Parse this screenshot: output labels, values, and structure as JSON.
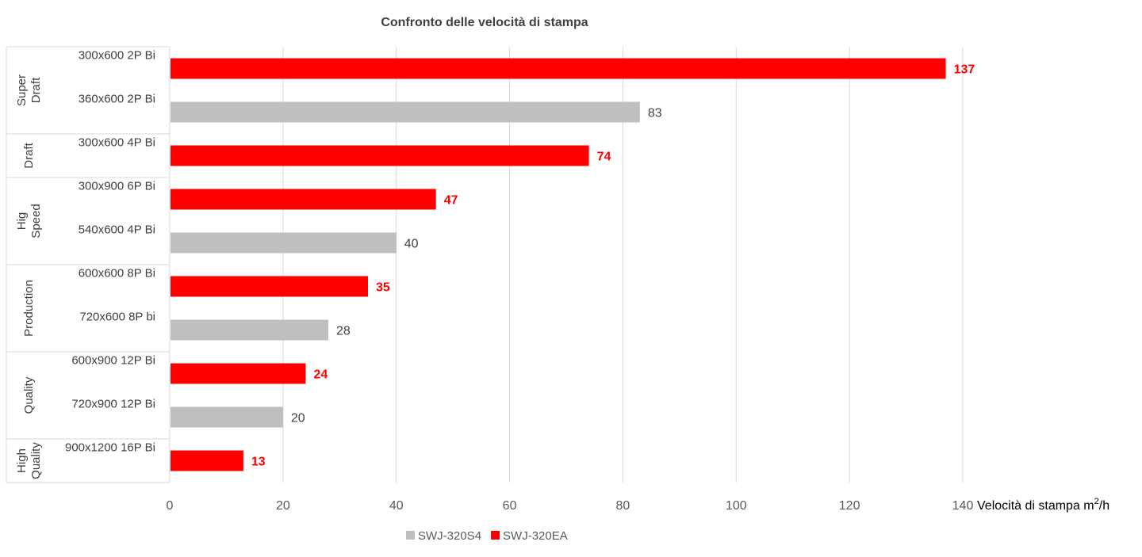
{
  "chart_data": {
    "type": "bar",
    "orientation": "horizontal",
    "title": "Confronto delle velocità di stampa",
    "xlabel": "Velocità di stampa m",
    "xlabel_sup": "2",
    "xlabel_suffix": "/h",
    "xlim": [
      0,
      140
    ],
    "xticks": [
      0,
      20,
      40,
      60,
      80,
      100,
      120,
      140
    ],
    "grid": true,
    "legend_position": "bottom",
    "series": [
      {
        "name": "SWJ-320S4",
        "color": "#bfbfbf"
      },
      {
        "name": "SWJ-320EA",
        "color": "#ff0000"
      }
    ],
    "groups": [
      {
        "name": [
          "Super",
          "Draft"
        ],
        "rows": [
          {
            "category": "300x600 2P Bi",
            "series": "SWJ-320EA",
            "value": 137
          },
          {
            "category": "360x600 2P Bi",
            "series": "SWJ-320S4",
            "value": 83
          }
        ]
      },
      {
        "name": [
          "Draft"
        ],
        "rows": [
          {
            "category": "300x600 4P Bi",
            "series": "SWJ-320EA",
            "value": 74
          }
        ]
      },
      {
        "name": [
          "Hig",
          "Speed"
        ],
        "rows": [
          {
            "category": "300x900 6P Bi",
            "series": "SWJ-320EA",
            "value": 47
          },
          {
            "category": "540x600 4P Bi",
            "series": "SWJ-320S4",
            "value": 40
          }
        ]
      },
      {
        "name": [
          "Production"
        ],
        "rows": [
          {
            "category": "600x600 8P Bi",
            "series": "SWJ-320EA",
            "value": 35
          },
          {
            "category": "720x600 8P bi",
            "series": "SWJ-320S4",
            "value": 28
          }
        ]
      },
      {
        "name": [
          "Quality"
        ],
        "rows": [
          {
            "category": "600x900 12P Bi",
            "series": "SWJ-320EA",
            "value": 24
          },
          {
            "category": "720x900 12P Bi",
            "series": "SWJ-320S4",
            "value": 20
          }
        ]
      },
      {
        "name": [
          "High",
          "Quality"
        ],
        "rows": [
          {
            "category": "900x1200 16P Bi",
            "series": "SWJ-320EA",
            "value": 13
          }
        ]
      }
    ]
  }
}
